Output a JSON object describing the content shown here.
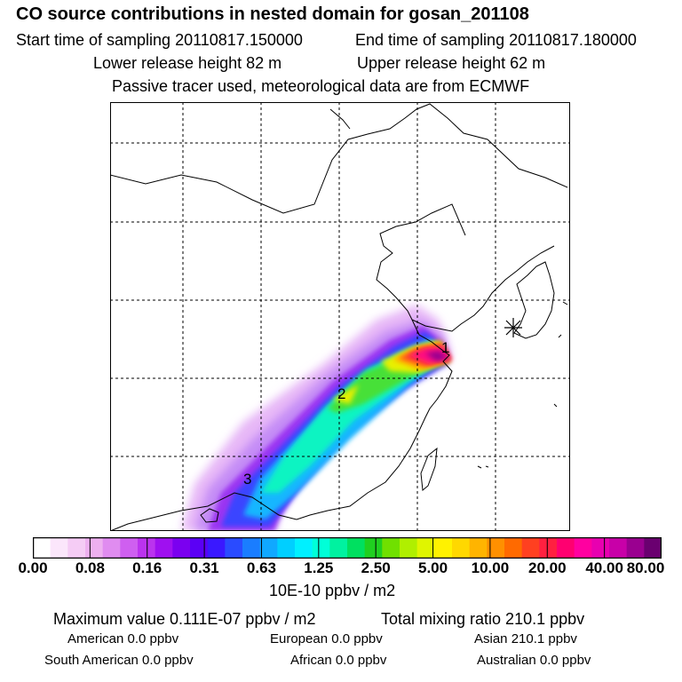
{
  "header": {
    "title": "CO  source contributions in nested domain for gosan_201108",
    "start_time": "Start time of sampling 20110817.150000",
    "end_time": "End time of sampling 20110817.180000",
    "lower_height": "Lower release height   82 m",
    "upper_height": "Upper release height   62 m",
    "tracer_note": "Passive tracer used, meteorological data are from ECMWF"
  },
  "map": {
    "receptor_icon": "asterisk-receptor-icon",
    "source_labels": [
      "1",
      "2",
      "3"
    ]
  },
  "colorbar": {
    "ticks": [
      "0.00",
      "0.08",
      "0.16",
      "0.31",
      "0.63",
      "1.25",
      "2.50",
      "5.00",
      "10.00",
      "20.00",
      "40.00",
      "80.00"
    ],
    "unit": "10E-10 ppbv / m2",
    "colors": [
      "#ffffff",
      "#fbe6fb",
      "#f5ccf5",
      "#eeb0f0",
      "#e08cf0",
      "#cf5ff0",
      "#bb33ee",
      "#9f10f0",
      "#7b00f0",
      "#5b00f5",
      "#3a18ff",
      "#2a4bff",
      "#1a7dff",
      "#10a8ff",
      "#00cfff",
      "#00f0ff",
      "#00ffd8",
      "#00f2a0",
      "#00e060",
      "#20d020",
      "#70e000",
      "#b0ef00",
      "#e0f500",
      "#fff200",
      "#ffd800",
      "#ffb400",
      "#ff9000",
      "#ff6a00",
      "#ff4020",
      "#ff2040",
      "#ff0070",
      "#ff00a0",
      "#e800b0",
      "#c800a8",
      "#9a0090",
      "#6a0070"
    ]
  },
  "footer": {
    "max_value": "Maximum value  0.111E-07 ppbv / m2",
    "total_mixing": "Total mixing ratio      210.1 ppbv",
    "american": "American         0.0 ppbv",
    "european": "European        0.0 ppbv",
    "asian": "Asian     210.1 ppbv",
    "south_american": "South American         0.0 ppbv",
    "african": "African         0.0 ppbv",
    "australian": "Australian         0.0 ppbv"
  }
}
